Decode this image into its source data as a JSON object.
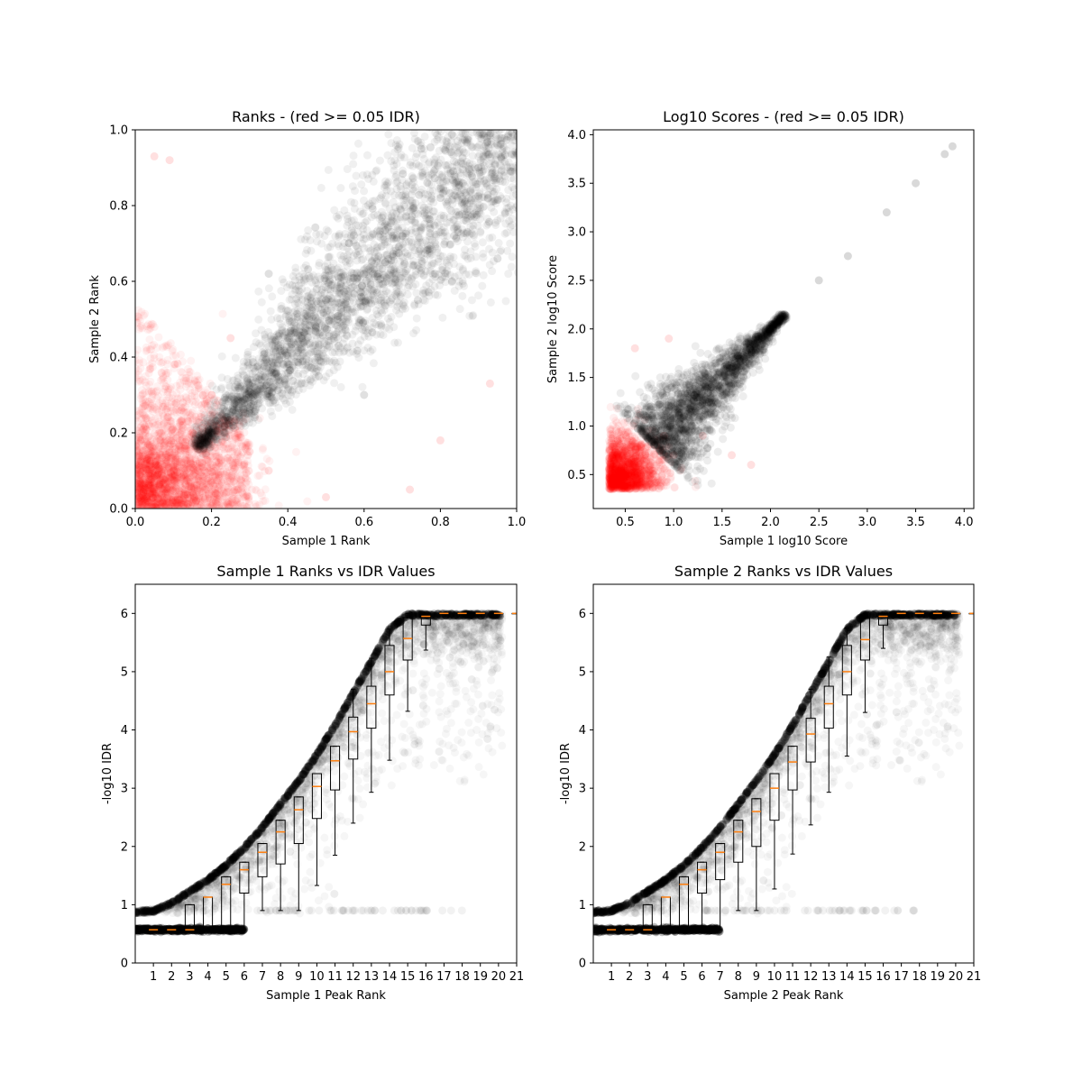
{
  "chart_data": [
    {
      "id": "ranks",
      "type": "scatter",
      "title": "Ranks - (red >= 0.05 IDR)",
      "xlabel": "Sample 1 Rank",
      "ylabel": "Sample 2 Rank",
      "xlim": [
        0.0,
        1.0
      ],
      "ylim": [
        0.0,
        1.0
      ],
      "xticks": [
        0.0,
        0.2,
        0.4,
        0.6,
        0.8,
        1.0
      ],
      "yticks": [
        0.0,
        0.2,
        0.4,
        0.6,
        0.8,
        1.0
      ],
      "xticklabels": [
        "0.0",
        "0.2",
        "0.4",
        "0.6",
        "0.8",
        "1.0"
      ],
      "yticklabels": [
        "0.0",
        "0.2",
        "0.4",
        "0.6",
        "0.8",
        "1.0"
      ],
      "grid": false,
      "series": [
        {
          "color": "#ff0000",
          "alpha": 0.05,
          "region": "low-rank fan below IDR threshold, plus sparse outliers",
          "points": [
            [
              0.05,
              0.05
            ],
            [
              0.1,
              0.1
            ],
            [
              0.15,
              0.2
            ],
            [
              0.2,
              0.3
            ],
            [
              0.25,
              0.45
            ],
            [
              0.3,
              0.15
            ],
            [
              0.05,
              0.93
            ],
            [
              0.09,
              0.92
            ],
            [
              0.35,
              0.1
            ],
            [
              0.8,
              0.18
            ],
            [
              0.93,
              0.33
            ],
            [
              0.72,
              0.05
            ],
            [
              0.5,
              0.03
            ]
          ]
        },
        {
          "color": "#000000",
          "alpha": 0.05,
          "region": "diagonal band from (0.16,0.16) to (1.0,1.0)",
          "points": [
            [
              0.2,
              0.2
            ],
            [
              0.4,
              0.45
            ],
            [
              0.5,
              0.55
            ],
            [
              0.6,
              0.62
            ],
            [
              0.7,
              0.72
            ],
            [
              0.8,
              0.82
            ],
            [
              0.9,
              0.9
            ],
            [
              1.0,
              1.0
            ],
            [
              0.35,
              0.62
            ],
            [
              0.6,
              0.3
            ],
            [
              0.75,
              0.95
            ],
            [
              0.95,
              0.66
            ]
          ]
        }
      ]
    },
    {
      "id": "scores",
      "type": "scatter",
      "title": "Log10 Scores - (red >= 0.05 IDR)",
      "xlabel": "Sample 1 log10 Score",
      "ylabel": "Sample 2 log10 Score",
      "xlim": [
        0.17,
        4.1
      ],
      "ylim": [
        0.15,
        4.05
      ],
      "xticks": [
        0.5,
        1.0,
        1.5,
        2.0,
        2.5,
        3.0,
        3.5,
        4.0
      ],
      "yticks": [
        0.5,
        1.0,
        1.5,
        2.0,
        2.5,
        3.0,
        3.5,
        4.0
      ],
      "xticklabels": [
        "0.5",
        "1.0",
        "1.5",
        "2.0",
        "2.5",
        "3.0",
        "3.5",
        "4.0"
      ],
      "yticklabels": [
        "0.5",
        "1.0",
        "1.5",
        "2.0",
        "2.5",
        "3.0",
        "3.5",
        "4.0"
      ],
      "grid": false,
      "series": [
        {
          "color": "#ff0000",
          "alpha": 0.05,
          "region": "low score cluster",
          "points": [
            [
              0.35,
              0.35
            ],
            [
              0.5,
              0.5
            ],
            [
              0.7,
              0.6
            ],
            [
              0.9,
              0.9
            ],
            [
              1.0,
              0.7
            ],
            [
              1.3,
              0.9
            ],
            [
              1.6,
              0.7
            ],
            [
              1.8,
              0.6
            ],
            [
              0.6,
              1.8
            ],
            [
              0.95,
              1.9
            ]
          ]
        },
        {
          "color": "#000000",
          "alpha": 0.1,
          "region": "diagonal band to (3.9,3.9)",
          "points": [
            [
              0.8,
              0.8
            ],
            [
              1.2,
              1.2
            ],
            [
              1.6,
              1.6
            ],
            [
              2.0,
              2.0
            ],
            [
              2.1,
              2.1
            ],
            [
              2.5,
              2.5
            ],
            [
              2.8,
              2.75
            ],
            [
              3.2,
              3.2
            ],
            [
              3.5,
              3.5
            ],
            [
              3.8,
              3.8
            ],
            [
              3.88,
              3.88
            ]
          ]
        }
      ]
    },
    {
      "id": "s1idr",
      "type": "box",
      "title": "Sample 1 Ranks vs IDR Values",
      "xlabel": "Sample 1 Peak Rank",
      "ylabel": "-log10 IDR",
      "xlim": [
        0,
        21
      ],
      "ylim": [
        0,
        6.5
      ],
      "xticks": [
        1,
        2,
        3,
        4,
        5,
        6,
        7,
        8,
        9,
        10,
        11,
        12,
        13,
        14,
        15,
        16,
        17,
        18,
        19,
        20,
        21
      ],
      "yticks": [
        0,
        1,
        2,
        3,
        4,
        5,
        6
      ],
      "xticklabels": [
        "1",
        "2",
        "3",
        "4",
        "5",
        "6",
        "7",
        "8",
        "9",
        "10",
        "11",
        "12",
        "13",
        "14",
        "15",
        "16",
        "17",
        "18",
        "19",
        "20",
        "21"
      ],
      "yticklabels": [
        "0",
        "1",
        "2",
        "3",
        "4",
        "5",
        "6"
      ],
      "grid": false,
      "boxes": [
        {
          "pos": 1,
          "whislo": 0.57,
          "q1": 0.57,
          "med": 0.57,
          "q3": 0.57,
          "whishi": 0.57
        },
        {
          "pos": 2,
          "whislo": 0.57,
          "q1": 0.57,
          "med": 0.57,
          "q3": 0.57,
          "whishi": 0.57
        },
        {
          "pos": 3,
          "whislo": 0.57,
          "q1": 0.57,
          "med": 0.57,
          "q3": 1.0,
          "whishi": 1.0
        },
        {
          "pos": 4,
          "whislo": 0.57,
          "q1": 0.57,
          "med": 1.13,
          "q3": 1.13,
          "whishi": 1.13
        },
        {
          "pos": 5,
          "whislo": 0.57,
          "q1": 0.57,
          "med": 1.35,
          "q3": 1.48,
          "whishi": 1.48
        },
        {
          "pos": 6,
          "whislo": 0.57,
          "q1": 1.2,
          "med": 1.6,
          "q3": 1.73,
          "whishi": 1.73
        },
        {
          "pos": 7,
          "whislo": 0.9,
          "q1": 1.48,
          "med": 1.9,
          "q3": 2.05,
          "whishi": 2.05
        },
        {
          "pos": 8,
          "whislo": 0.9,
          "q1": 1.7,
          "med": 2.25,
          "q3": 2.45,
          "whishi": 2.45
        },
        {
          "pos": 9,
          "whislo": 0.9,
          "q1": 2.05,
          "med": 2.63,
          "q3": 2.85,
          "whishi": 2.85
        },
        {
          "pos": 10,
          "whislo": 1.33,
          "q1": 2.48,
          "med": 3.03,
          "q3": 3.25,
          "whishi": 3.25
        },
        {
          "pos": 11,
          "whislo": 1.85,
          "q1": 2.97,
          "med": 3.47,
          "q3": 3.72,
          "whishi": 3.72
        },
        {
          "pos": 12,
          "whislo": 2.4,
          "q1": 3.5,
          "med": 3.97,
          "q3": 4.22,
          "whishi": 4.7
        },
        {
          "pos": 13,
          "whislo": 2.93,
          "q1": 4.03,
          "med": 4.45,
          "q3": 4.75,
          "whishi": 5.23
        },
        {
          "pos": 14,
          "whislo": 3.48,
          "q1": 4.6,
          "med": 5.0,
          "q3": 5.45,
          "whishi": 5.73
        },
        {
          "pos": 15,
          "whislo": 4.32,
          "q1": 5.2,
          "med": 5.57,
          "q3": 5.93,
          "whishi": 6.0
        },
        {
          "pos": 16,
          "whislo": 5.37,
          "q1": 5.8,
          "med": 5.95,
          "q3": 6.0,
          "whishi": 6.0
        },
        {
          "pos": 17,
          "whislo": 6.0,
          "q1": 6.0,
          "med": 6.0,
          "q3": 6.0,
          "whishi": 6.0
        },
        {
          "pos": 18,
          "whislo": 6.0,
          "q1": 6.0,
          "med": 6.0,
          "q3": 6.0,
          "whishi": 6.0
        },
        {
          "pos": 19,
          "whislo": 6.0,
          "q1": 6.0,
          "med": 6.0,
          "q3": 6.0,
          "whishi": 6.0
        },
        {
          "pos": 20,
          "whislo": 6.0,
          "q1": 6.0,
          "med": 6.0,
          "q3": 6.0,
          "whishi": 6.0
        },
        {
          "pos": 21,
          "whislo": 6.0,
          "q1": 6.0,
          "med": 6.0,
          "q3": 6.0,
          "whishi": 6.0
        }
      ],
      "scatter": {
        "color": "#000000",
        "alpha": 0.03,
        "curve": [
          [
            0,
            0.9
          ],
          [
            1,
            0.92
          ],
          [
            2,
            1.05
          ],
          [
            3,
            1.25
          ],
          [
            4,
            1.45
          ],
          [
            5,
            1.7
          ],
          [
            6,
            2.0
          ],
          [
            7,
            2.35
          ],
          [
            8,
            2.75
          ],
          [
            9,
            3.15
          ],
          [
            10,
            3.6
          ],
          [
            11,
            4.1
          ],
          [
            12,
            4.65
          ],
          [
            13,
            5.2
          ],
          [
            14,
            5.75
          ],
          [
            15,
            6.0
          ],
          [
            20,
            6.0
          ]
        ],
        "lower": [
          [
            0,
            0.57
          ],
          [
            6,
            0.57
          ]
        ]
      }
    },
    {
      "id": "s2idr",
      "type": "box",
      "title": "Sample 2 Ranks vs IDR Values",
      "xlabel": "Sample 2 Peak Rank",
      "ylabel": "-log10 IDR",
      "xlim": [
        0,
        21
      ],
      "ylim": [
        0,
        6.5
      ],
      "xticks": [
        1,
        2,
        3,
        4,
        5,
        6,
        7,
        8,
        9,
        10,
        11,
        12,
        13,
        14,
        15,
        16,
        17,
        18,
        19,
        20,
        21
      ],
      "yticks": [
        0,
        1,
        2,
        3,
        4,
        5,
        6
      ],
      "xticklabels": [
        "1",
        "2",
        "3",
        "4",
        "5",
        "6",
        "7",
        "8",
        "9",
        "10",
        "11",
        "12",
        "13",
        "14",
        "15",
        "16",
        "17",
        "18",
        "19",
        "20",
        "21"
      ],
      "yticklabels": [
        "0",
        "1",
        "2",
        "3",
        "4",
        "5",
        "6"
      ],
      "grid": false,
      "boxes": [
        {
          "pos": 1,
          "whislo": 0.57,
          "q1": 0.57,
          "med": 0.57,
          "q3": 0.57,
          "whishi": 0.57
        },
        {
          "pos": 2,
          "whislo": 0.57,
          "q1": 0.57,
          "med": 0.57,
          "q3": 0.57,
          "whishi": 0.57
        },
        {
          "pos": 3,
          "whislo": 0.57,
          "q1": 0.57,
          "med": 0.57,
          "q3": 1.0,
          "whishi": 1.0
        },
        {
          "pos": 4,
          "whislo": 0.57,
          "q1": 0.57,
          "med": 1.13,
          "q3": 1.13,
          "whishi": 1.13
        },
        {
          "pos": 5,
          "whislo": 0.57,
          "q1": 0.57,
          "med": 1.35,
          "q3": 1.48,
          "whishi": 1.48
        },
        {
          "pos": 6,
          "whislo": 0.57,
          "q1": 1.2,
          "med": 1.6,
          "q3": 1.73,
          "whishi": 1.73
        },
        {
          "pos": 7,
          "whislo": 0.57,
          "q1": 1.43,
          "med": 1.9,
          "q3": 2.05,
          "whishi": 2.05
        },
        {
          "pos": 8,
          "whislo": 0.9,
          "q1": 1.73,
          "med": 2.25,
          "q3": 2.45,
          "whishi": 2.45
        },
        {
          "pos": 9,
          "whislo": 0.9,
          "q1": 2.0,
          "med": 2.6,
          "q3": 2.82,
          "whishi": 2.82
        },
        {
          "pos": 10,
          "whislo": 1.27,
          "q1": 2.45,
          "med": 3.0,
          "q3": 3.25,
          "whishi": 3.25
        },
        {
          "pos": 11,
          "whislo": 1.87,
          "q1": 2.97,
          "med": 3.45,
          "q3": 3.72,
          "whishi": 3.72
        },
        {
          "pos": 12,
          "whislo": 2.37,
          "q1": 3.45,
          "med": 3.93,
          "q3": 4.2,
          "whishi": 4.7
        },
        {
          "pos": 13,
          "whislo": 2.93,
          "q1": 4.03,
          "med": 4.45,
          "q3": 4.75,
          "whishi": 5.25
        },
        {
          "pos": 14,
          "whislo": 3.55,
          "q1": 4.6,
          "med": 5.0,
          "q3": 5.45,
          "whishi": 5.75
        },
        {
          "pos": 15,
          "whislo": 4.3,
          "q1": 5.2,
          "med": 5.55,
          "q3": 5.93,
          "whishi": 6.0
        },
        {
          "pos": 16,
          "whislo": 5.4,
          "q1": 5.8,
          "med": 5.95,
          "q3": 6.0,
          "whishi": 6.0
        },
        {
          "pos": 17,
          "whislo": 6.0,
          "q1": 6.0,
          "med": 6.0,
          "q3": 6.0,
          "whishi": 6.0
        },
        {
          "pos": 18,
          "whislo": 6.0,
          "q1": 6.0,
          "med": 6.0,
          "q3": 6.0,
          "whishi": 6.0
        },
        {
          "pos": 19,
          "whislo": 6.0,
          "q1": 6.0,
          "med": 6.0,
          "q3": 6.0,
          "whishi": 6.0
        },
        {
          "pos": 20,
          "whislo": 6.0,
          "q1": 6.0,
          "med": 6.0,
          "q3": 6.0,
          "whishi": 6.0
        },
        {
          "pos": 21,
          "whislo": 6.0,
          "q1": 6.0,
          "med": 6.0,
          "q3": 6.0,
          "whishi": 6.0
        }
      ],
      "scatter": {
        "color": "#000000",
        "alpha": 0.03,
        "curve": [
          [
            0,
            0.9
          ],
          [
            1,
            0.92
          ],
          [
            2,
            1.05
          ],
          [
            3,
            1.25
          ],
          [
            4,
            1.45
          ],
          [
            5,
            1.7
          ],
          [
            6,
            2.0
          ],
          [
            7,
            2.35
          ],
          [
            8,
            2.75
          ],
          [
            9,
            3.15
          ],
          [
            10,
            3.6
          ],
          [
            11,
            4.1
          ],
          [
            12,
            4.65
          ],
          [
            13,
            5.2
          ],
          [
            14,
            5.75
          ],
          [
            15,
            6.0
          ],
          [
            20,
            6.0
          ]
        ],
        "lower": [
          [
            0,
            0.57
          ],
          [
            7,
            0.57
          ]
        ]
      }
    }
  ],
  "colors": {
    "median": "#ff7f0e",
    "box": "#000000",
    "high_idr": "#ff0000",
    "low_idr": "#000000"
  }
}
